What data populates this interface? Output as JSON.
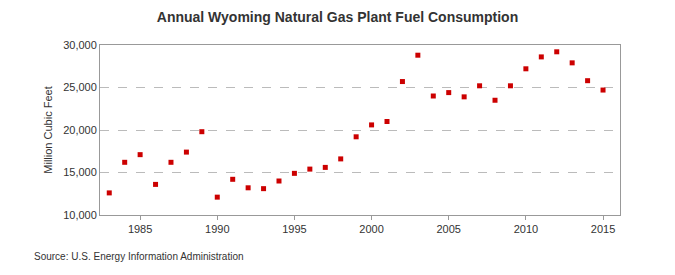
{
  "chart_data": {
    "type": "scatter",
    "title": "Annual Wyoming Natural Gas Plant Fuel Consumption",
    "y_label": "Million Cubic Feet",
    "annotations": [
      "Source: U.S. Energy Information Administration"
    ],
    "x": [
      1983,
      1984,
      1985,
      1986,
      1987,
      1988,
      1989,
      1990,
      1991,
      1992,
      1993,
      1994,
      1995,
      1996,
      1997,
      1998,
      1999,
      2000,
      2001,
      2002,
      2003,
      2004,
      2005,
      2006,
      2007,
      2008,
      2009,
      2010,
      2011,
      2012,
      2013,
      2014,
      2015
    ],
    "values": [
      12600,
      16200,
      17100,
      13600,
      16200,
      17400,
      19800,
      12100,
      14200,
      13200,
      13100,
      14000,
      14900,
      15400,
      15600,
      16600,
      19200,
      20600,
      21000,
      25700,
      28800,
      24000,
      24400,
      23900,
      25200,
      23500,
      25200,
      27200,
      28600,
      29200,
      27900,
      25800,
      24700
    ],
    "color": "#cc0000",
    "marker": "square",
    "xlim": [
      1982.4,
      2016.1
    ],
    "xticks": [
      1985,
      1990,
      1995,
      2000,
      2005,
      2010,
      2015
    ],
    "ylim": [
      10000,
      30000
    ],
    "yticks": [
      {
        "value": 10000,
        "label": "10,000"
      },
      {
        "value": 15000,
        "label": "15,000"
      },
      {
        "value": 20000,
        "label": "20,000"
      },
      {
        "value": 25000,
        "label": "25,000"
      },
      {
        "value": 30000,
        "label": "30,000"
      }
    ],
    "grid": true
  }
}
